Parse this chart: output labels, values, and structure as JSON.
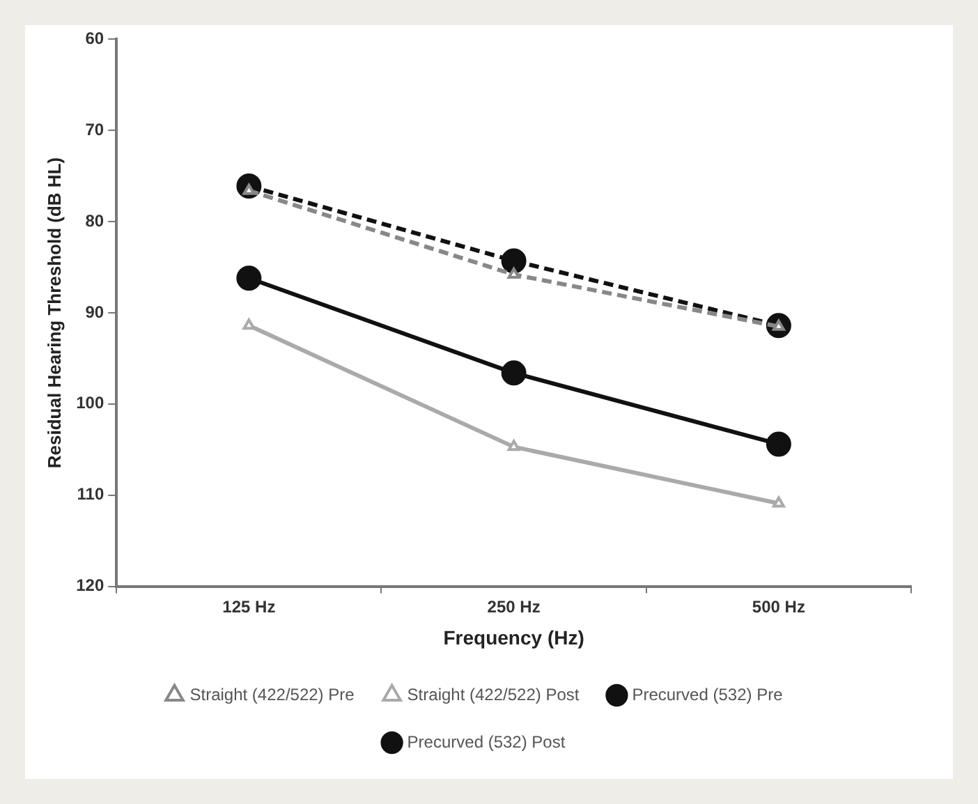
{
  "chart_data": {
    "type": "line",
    "xlabel": "Frequency (Hz)",
    "ylabel": "Residual Hearing Threshold (dB HL)",
    "categories": [
      "125 Hz",
      "250 Hz",
      "500 Hz"
    ],
    "ylim": [
      120,
      60
    ],
    "yticks": [
      60,
      70,
      80,
      90,
      100,
      110,
      120
    ],
    "grid": false,
    "legend": "bottom",
    "series": [
      {
        "name": "Straight (422/522) Pre",
        "color": "#888888",
        "values": [
          76.6,
          85.8,
          91.5
        ],
        "marker": "triangle",
        "line_style": "dashed"
      },
      {
        "name": "Straight (422/522) Post",
        "color": "#aaaaaa",
        "values": [
          91.4,
          104.7,
          110.9
        ],
        "marker": "triangle",
        "line_style": "solid"
      },
      {
        "name": "Precurved (532) Pre",
        "color": "#111111",
        "values": [
          76.1,
          84.3,
          91.4
        ],
        "marker": "circle",
        "line_style": "dashed"
      },
      {
        "name": "Precurved (532) Post",
        "color": "#111111",
        "values": [
          86.2,
          96.6,
          104.4
        ],
        "marker": "circle",
        "line_style": "solid"
      }
    ]
  }
}
